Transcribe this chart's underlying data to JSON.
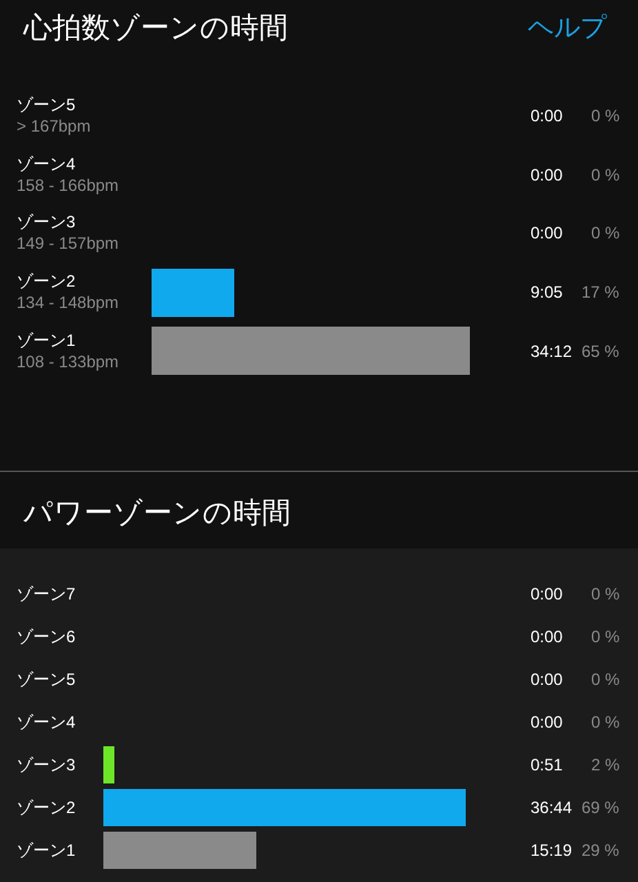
{
  "chart_data": [
    {
      "type": "bar",
      "orientation": "horizontal",
      "title": "心拍数ゾーンの時間",
      "annotations": [
        "ヘルプ",
        "0:00",
        "0:00",
        "0:00",
        "9:05",
        "34:12"
      ],
      "categories": [
        "ゾーン5\n> 167bpm",
        "ゾーン4\n158 - 166bpm",
        "ゾーン3\n149 - 157bpm",
        "ゾーン2\n134 - 148bpm",
        "ゾーン1\n108 - 133bpm"
      ],
      "values": [
        0,
        0,
        0,
        17,
        65
      ],
      "colors": [
        null,
        null,
        null,
        "#11a9ed",
        "#8a8a8a"
      ],
      "value_labels": [
        "0 %",
        "0 %",
        "0 %",
        "17 %",
        "65 %"
      ],
      "tick_labels": false
    },
    {
      "type": "bar",
      "orientation": "horizontal",
      "title": "パワーゾーンの時間",
      "annotations": [
        "0:00",
        "0:00",
        "0:00",
        "0:00",
        "0:51",
        "36:44",
        "15:19"
      ],
      "categories": [
        "ゾーン7",
        "ゾーン6",
        "ゾーン5",
        "ゾーン4",
        "ゾーン3",
        "ゾーン2",
        "ゾーン1"
      ],
      "values": [
        0,
        0,
        0,
        0,
        2,
        69,
        29
      ],
      "colors": [
        null,
        null,
        null,
        null,
        "#6ee628",
        "#11a9ed",
        "#8a8a8a"
      ],
      "value_labels": [
        "0 %",
        "0 %",
        "0 %",
        "0 %",
        "2 %",
        "69 %",
        "29 %"
      ],
      "tick_labels": false
    }
  ]
}
